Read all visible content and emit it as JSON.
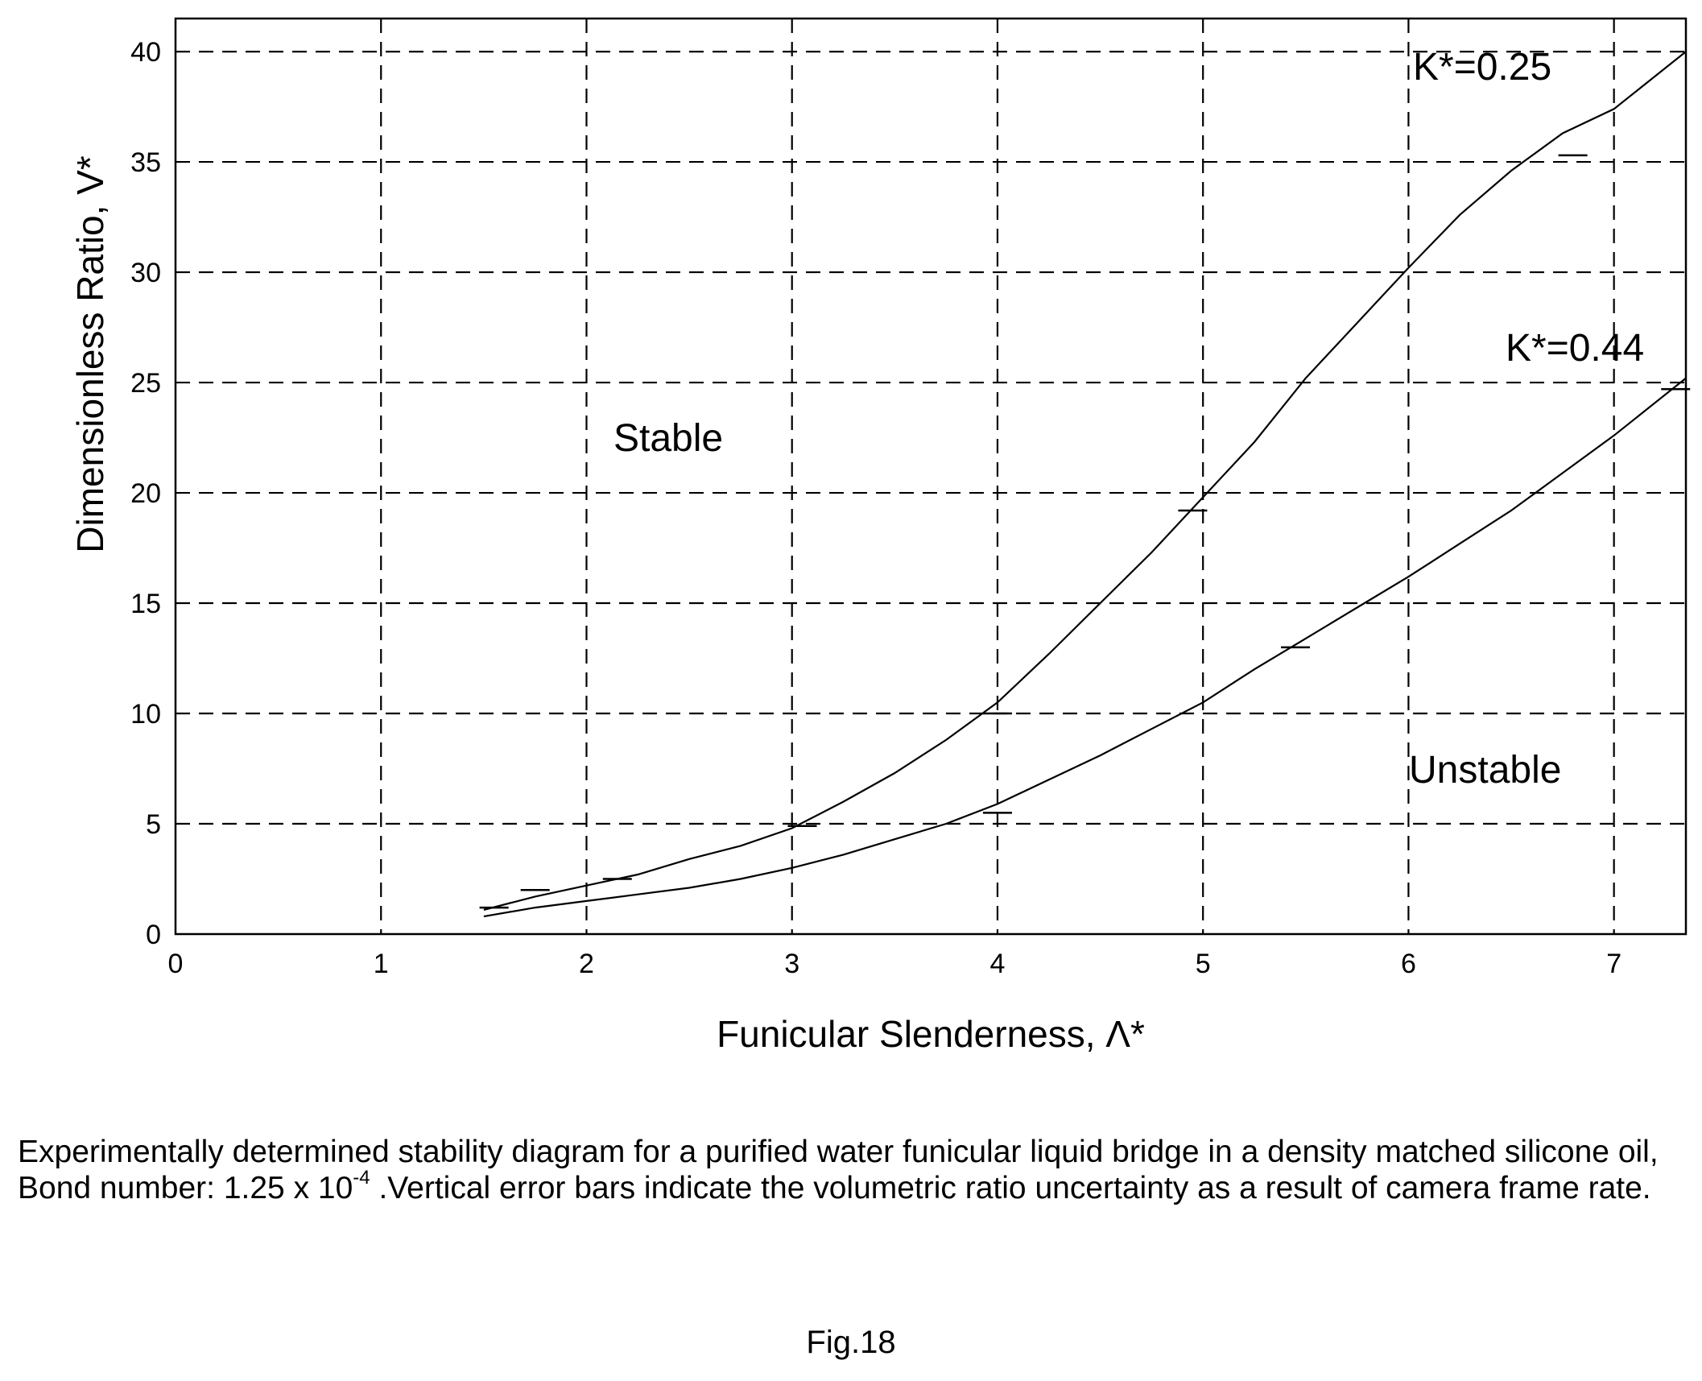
{
  "chart_data": {
    "type": "line",
    "xlabel": "Funicular Slenderness, Λ*",
    "ylabel": "Dimensionless Ratio, V*",
    "xlim": [
      0,
      7.35
    ],
    "ylim": [
      0,
      41.5
    ],
    "xticks": [
      "0",
      "1",
      "2",
      "3",
      "4",
      "5",
      "6",
      "7"
    ],
    "yticks": [
      "0",
      "5",
      "10",
      "15",
      "20",
      "25",
      "30",
      "35",
      "40"
    ],
    "grid": "dashed",
    "series": [
      {
        "name": "K*=0.25",
        "x": [
          1.5,
          1.75,
          2.0,
          2.25,
          2.5,
          2.75,
          3.0,
          3.25,
          3.5,
          3.75,
          4.0,
          4.25,
          4.5,
          4.75,
          5.0,
          5.25,
          5.5,
          5.75,
          6.0,
          6.25,
          6.5,
          6.75,
          7.0,
          7.35
        ],
        "y": [
          1.1,
          1.7,
          2.2,
          2.7,
          3.4,
          4.0,
          4.8,
          6.0,
          7.3,
          8.8,
          10.5,
          12.7,
          15.0,
          17.3,
          19.8,
          22.3,
          25.2,
          27.7,
          30.2,
          32.6,
          34.6,
          36.3,
          37.4,
          40.0
        ],
        "error_bars": [
          {
            "x": 1.55,
            "y": 1.2
          },
          {
            "x": 1.75,
            "y": 2.0
          },
          {
            "x": 2.15,
            "y": 2.5
          },
          {
            "x": 3.05,
            "y": 4.9
          },
          {
            "x": 4.0,
            "y": 10.0
          },
          {
            "x": 4.95,
            "y": 19.2
          },
          {
            "x": 6.8,
            "y": 35.3
          }
        ]
      },
      {
        "name": "K*=0.44",
        "x": [
          1.5,
          1.75,
          2.0,
          2.25,
          2.5,
          2.75,
          3.0,
          3.25,
          3.5,
          3.75,
          4.0,
          4.25,
          4.5,
          4.75,
          5.0,
          5.25,
          5.5,
          5.75,
          6.0,
          6.25,
          6.5,
          6.75,
          7.0,
          7.35
        ],
        "y": [
          0.8,
          1.2,
          1.5,
          1.8,
          2.1,
          2.5,
          3.0,
          3.6,
          4.3,
          5.0,
          5.9,
          7.0,
          8.1,
          9.3,
          10.5,
          12.0,
          13.4,
          14.8,
          16.2,
          17.7,
          19.2,
          20.9,
          22.6,
          25.2
        ],
        "error_bars": [
          {
            "x": 4.0,
            "y": 5.5
          },
          {
            "x": 5.45,
            "y": 13.0
          },
          {
            "x": 7.3,
            "y": 24.7
          }
        ]
      }
    ],
    "annotations": {
      "k025": "K*=0.25",
      "k044": "K*=0.44",
      "stable": "Stable",
      "unstable": "Unstable"
    }
  },
  "caption": {
    "part1": "Experimentally determined stability diagram for a purified water funicular liquid bridge in a density matched silicone oil, Bond number: 1.25 x 10",
    "exponent": "-4",
    "part2": " .Vertical error bars indicate the volumetric ratio uncertainty as a result of camera frame rate."
  },
  "figure_label": "Fig.18"
}
